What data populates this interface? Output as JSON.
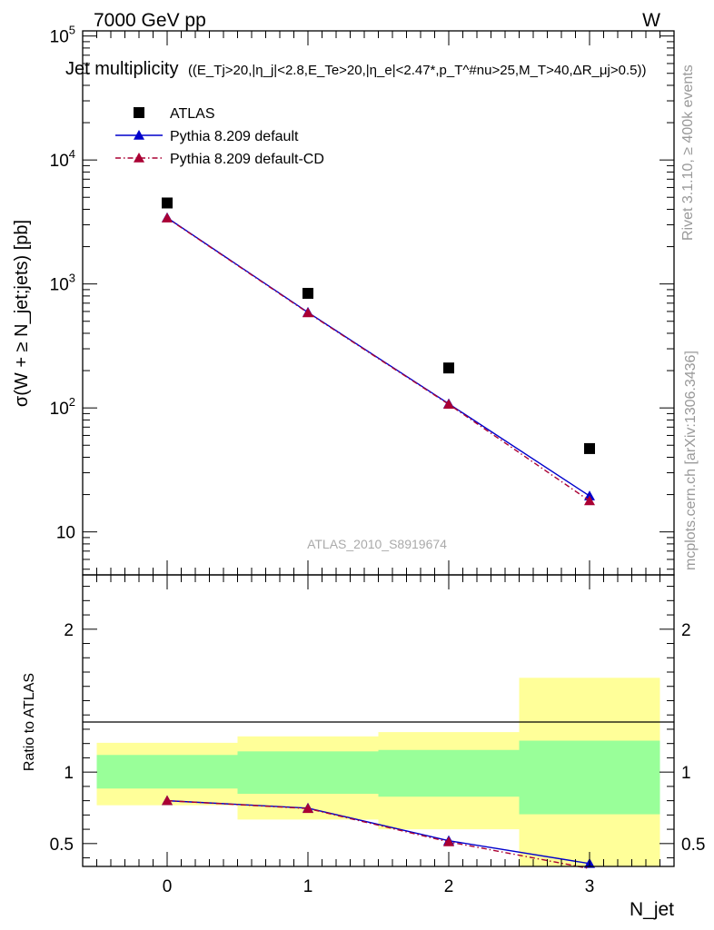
{
  "header": {
    "left": "7000 GeV pp",
    "right": "W"
  },
  "side_labels": {
    "rivet": "Rivet 3.1.10, ≥ 400k events",
    "mcplots": "mcplots.cern.ch [arXiv:1306.3436]"
  },
  "chart_data": [
    {
      "type": "scatter",
      "panel": "main",
      "title": "Jet multiplicity ((E_Tj>20,|η_j|<2.8,E_Te>20,|η_e|<2.47*,p_T^#nu>25,M_T>40,ΔR_μj>0.5))",
      "title_main": "Jet multiplicity",
      "title_cuts": "((E_Tj>20,|η_j|<2.8,E_Te>20,|η_e|<2.47*,p_T^#nu>25,M_T>40,ΔR_μj>0.5))",
      "ylabel": "σ(W + ≥ N_jet;jets) [pb]",
      "xlabel": "",
      "yscale": "log",
      "ylim": [
        4.5,
        110000
      ],
      "xlim": [
        -0.6,
        3.6
      ],
      "ytick_labels": [
        "10",
        "10^2",
        "10^3",
        "10^4",
        "10^5"
      ],
      "watermark": "ATLAS_2010_S8919674",
      "legend_position": "top-left",
      "series": [
        {
          "name": "ATLAS",
          "style": "marker-square",
          "color": "#000000",
          "x": [
            0,
            1,
            2,
            3
          ],
          "y": [
            4500,
            840,
            210,
            47
          ]
        },
        {
          "name": "Pythia 8.209 default",
          "style": "solid-line-triangle",
          "color": "#0000cc",
          "x": [
            0,
            1,
            2,
            3
          ],
          "y": [
            3420,
            590,
            108,
            19.5
          ]
        },
        {
          "name": "Pythia 8.209 default-CD",
          "style": "dashdot-line-triangle",
          "color": "#aa0033",
          "x": [
            0,
            1,
            2,
            3
          ],
          "y": [
            3400,
            585,
            107,
            17.8
          ]
        }
      ]
    },
    {
      "type": "scatter",
      "panel": "ratio",
      "ylabel": "Ratio to ATLAS",
      "xlabel": "N_jet",
      "ylim": [
        0.34,
        2.38
      ],
      "xlim": [
        -0.6,
        3.6
      ],
      "ytick_labels": [
        "0.5",
        "1",
        "2"
      ],
      "xtick_labels": [
        "0",
        "1",
        "2",
        "3"
      ],
      "bands": {
        "bin_edges": [
          -0.5,
          0.5,
          1.5,
          2.5,
          3.5
        ],
        "inner": {
          "color": "#99ff99",
          "low": [
            0.885,
            0.848,
            0.828,
            0.705
          ],
          "high": [
            1.12,
            1.145,
            1.155,
            1.22
          ]
        },
        "outer": {
          "color": "#ffff99",
          "low": [
            0.768,
            0.668,
            0.6,
            0.34
          ],
          "high": [
            1.205,
            1.25,
            1.28,
            1.66
          ]
        }
      },
      "series": [
        {
          "name": "Pythia 8.209 default",
          "color": "#0000cc",
          "x": [
            0,
            1,
            2,
            3
          ],
          "y": [
            0.8,
            0.748,
            0.52,
            0.36
          ]
        },
        {
          "name": "Pythia 8.209 default-CD",
          "color": "#aa0033",
          "x": [
            0,
            1,
            2,
            3
          ],
          "y": [
            0.8,
            0.745,
            0.512,
            0.325
          ]
        }
      ]
    }
  ]
}
